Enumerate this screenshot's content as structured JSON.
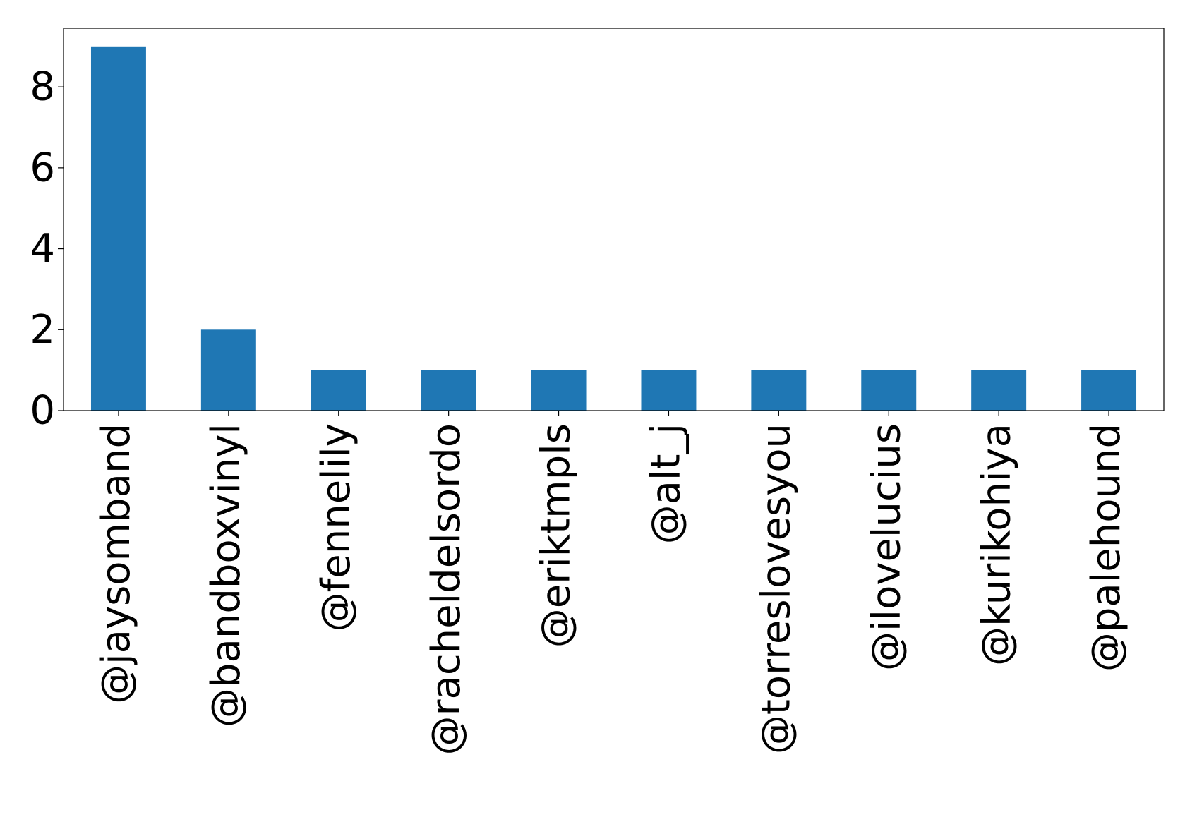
{
  "chart_data": {
    "type": "bar",
    "categories": [
      "@jaysomband",
      "@bandboxvinyl",
      "@fennelily",
      "@racheldelsordo",
      "@eriktmpls",
      "@alt_j",
      "@torreslovesyou",
      "@ilovelucius",
      "@kurikohiya",
      "@palehound"
    ],
    "values": [
      9,
      2,
      1,
      1,
      1,
      1,
      1,
      1,
      1,
      1
    ],
    "title": "",
    "xlabel": "",
    "ylabel": "",
    "ylim": [
      0,
      9.45
    ],
    "yticks": [
      0,
      2,
      4,
      6,
      8
    ],
    "grid": false,
    "legend": "none",
    "bar_color": "#1f77b4"
  }
}
